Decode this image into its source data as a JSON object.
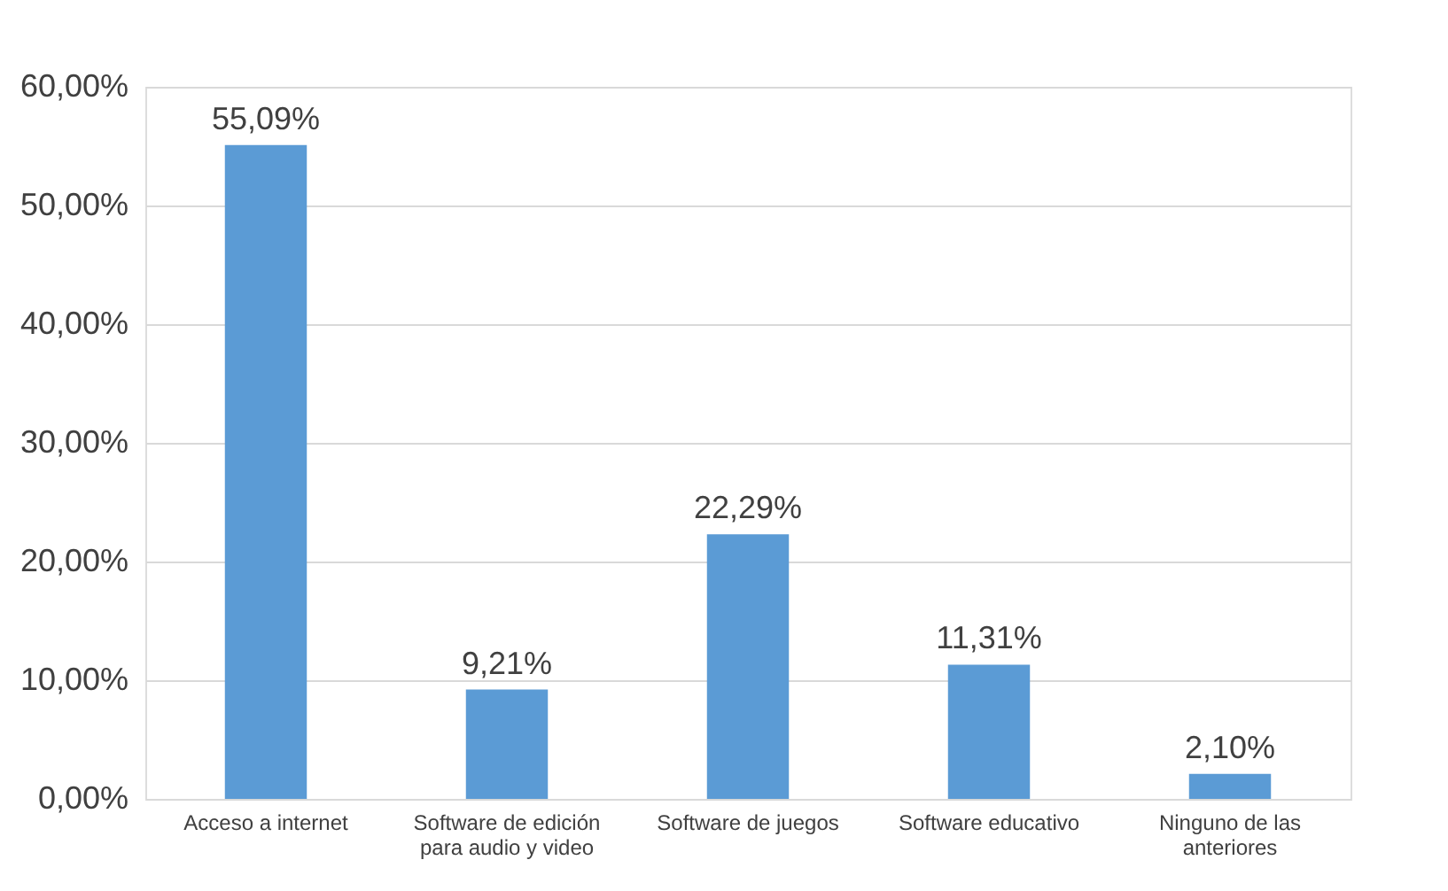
{
  "chart_data": {
    "type": "bar",
    "categories": [
      "Acceso a internet",
      "Software de edición para audio y video",
      "Software de juegos",
      "Software educativo",
      "Ninguno de las anteriores"
    ],
    "values": [
      55.09,
      9.21,
      22.29,
      11.31,
      2.1
    ],
    "value_labels": [
      "55,09%",
      "9,21%",
      "22,29%",
      "11,31%",
      "2,10%"
    ],
    "color": "#5b9bd5",
    "ylim": [
      0,
      60
    ],
    "yticks": [
      {
        "value": 0,
        "label": "0,00%"
      },
      {
        "value": 10,
        "label": "10,00%"
      },
      {
        "value": 20,
        "label": "20,00%"
      },
      {
        "value": 30,
        "label": "30,00%"
      },
      {
        "value": 40,
        "label": "40,00%"
      },
      {
        "value": 50,
        "label": "50,00%"
      },
      {
        "value": 60,
        "label": "60,00%"
      }
    ],
    "grid": "y"
  }
}
